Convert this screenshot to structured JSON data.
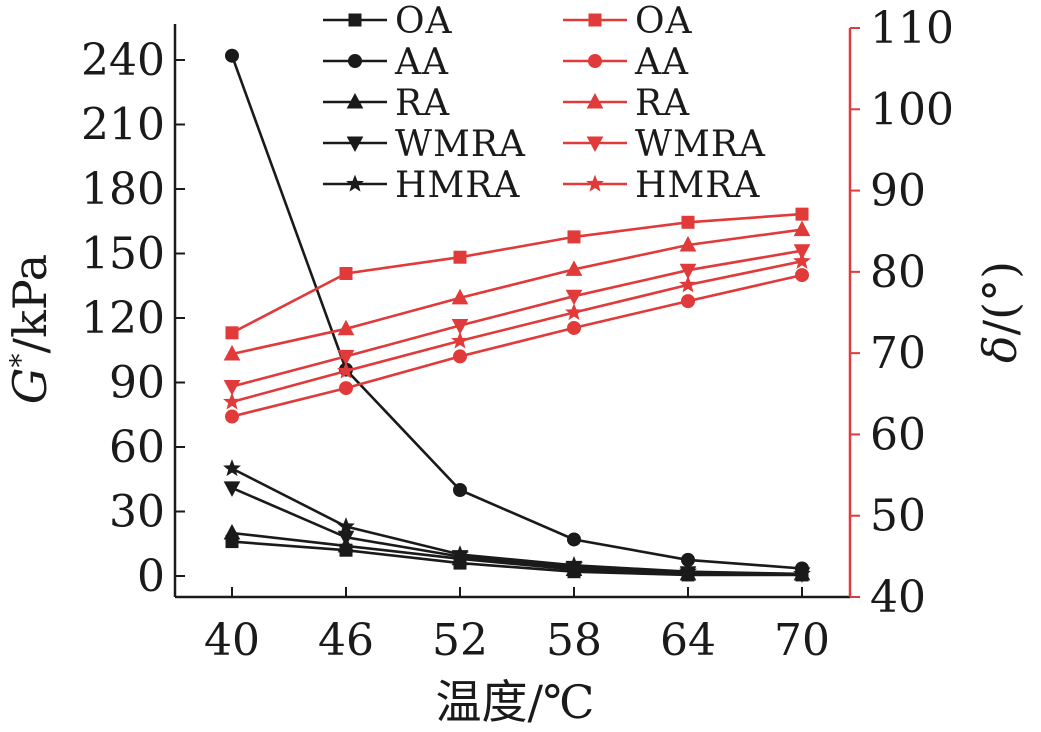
{
  "chart_data": {
    "type": "line",
    "xlabel": "温度/℃",
    "ylabel_left": {
      "main": "G",
      "sup": "*",
      "rest": "/kPa"
    },
    "ylabel_right": {
      "main": "δ",
      "rest": "/(°)"
    },
    "x": [
      40,
      46,
      52,
      58,
      64,
      70
    ],
    "x_ticks": [
      "40",
      "46",
      "52",
      "58",
      "64",
      "70"
    ],
    "y_left_lim": [
      -10,
      250
    ],
    "y_left_ticks": [
      "0",
      "30",
      "60",
      "90",
      "120",
      "150",
      "180",
      "210",
      "240"
    ],
    "y_right_lim": [
      40,
      110
    ],
    "y_right_ticks": [
      "40",
      "50",
      "60",
      "70",
      "80",
      "90",
      "100",
      "110"
    ],
    "colors": {
      "left": "#1a1a1a",
      "right": "#e03a3a"
    },
    "legend_position": "top",
    "series_left": [
      {
        "name": "OA",
        "marker": "square",
        "values": [
          16,
          12,
          6,
          2,
          0.5,
          0.5
        ]
      },
      {
        "name": "AA",
        "marker": "circle",
        "values": [
          242,
          96,
          40,
          17,
          7.5,
          3.5
        ]
      },
      {
        "name": "RA",
        "marker": "triangle-up",
        "values": [
          20,
          14,
          8,
          3,
          1,
          1
        ]
      },
      {
        "name": "WMRA",
        "marker": "triangle-down",
        "values": [
          41,
          18,
          9,
          4,
          1.5,
          1
        ]
      },
      {
        "name": "HMRA",
        "marker": "star",
        "values": [
          50,
          23,
          10,
          5,
          2,
          1
        ]
      }
    ],
    "series_right": [
      {
        "name": "OA",
        "marker": "square",
        "values": [
          72.5,
          79.8,
          81.8,
          84.3,
          86.1,
          87.1
        ]
      },
      {
        "name": "AA",
        "marker": "circle",
        "values": [
          62.2,
          65.7,
          69.6,
          73.1,
          76.4,
          79.6
        ]
      },
      {
        "name": "RA",
        "marker": "triangle-up",
        "values": [
          69.9,
          73.0,
          76.8,
          80.3,
          83.3,
          85.2
        ]
      },
      {
        "name": "WMRA",
        "marker": "triangle-down",
        "values": [
          65.9,
          69.6,
          73.4,
          77.0,
          80.2,
          82.6
        ]
      },
      {
        "name": "HMRA",
        "marker": "star",
        "values": [
          64.0,
          67.8,
          71.5,
          75.0,
          78.4,
          81.3
        ]
      }
    ]
  }
}
